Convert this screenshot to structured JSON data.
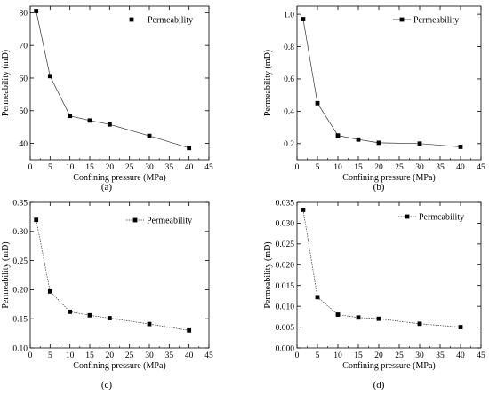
{
  "chart_data": [
    {
      "type": "line",
      "caption": "(a)",
      "xlabel": "Confining pressure (MPa)",
      "ylabel": "Permeability (mD)",
      "xlim": [
        0,
        45
      ],
      "ylim": [
        35,
        82
      ],
      "xticks": [
        "0",
        "5",
        "10",
        "15",
        "20",
        "25",
        "30",
        "35",
        "40",
        "45"
      ],
      "yticks": [
        "40",
        "50",
        "60",
        "70",
        "80"
      ],
      "line_style": "none",
      "legend_position": "top-right",
      "series": [
        {
          "name": "Permeability",
          "x": [
            1.5,
            5,
            10,
            15,
            20,
            30,
            40
          ],
          "y": [
            80.5,
            60.6,
            48.4,
            47,
            45.8,
            42.3,
            38.6
          ]
        }
      ]
    },
    {
      "type": "line",
      "caption": "(b)",
      "xlabel": "Confining pressure (MPa)",
      "ylabel": "Permeability (mD)",
      "xlim": [
        0,
        45
      ],
      "ylim": [
        0.1,
        1.05
      ],
      "xticks": [
        "0",
        "5",
        "10",
        "15",
        "20",
        "25",
        "30",
        "35",
        "40",
        "45"
      ],
      "yticks": [
        "0.2",
        "0.4",
        "0.6",
        "0.8",
        "1.0"
      ],
      "line_style": "solid",
      "legend_position": "top-right",
      "series": [
        {
          "name": "Permeability",
          "x": [
            1.5,
            5,
            10,
            15,
            20,
            30,
            40
          ],
          "y": [
            0.97,
            0.45,
            0.25,
            0.225,
            0.205,
            0.2,
            0.18
          ]
        }
      ]
    },
    {
      "type": "line",
      "caption": "(c)",
      "xlabel": "Confining pressure (MPa)",
      "ylabel": "Permeability (mD)",
      "xlim": [
        0,
        45
      ],
      "ylim": [
        0.1,
        0.35
      ],
      "xticks": [
        "0",
        "5",
        "10",
        "15",
        "20",
        "25",
        "30",
        "35",
        "40",
        "45"
      ],
      "yticks": [
        "0.10",
        "0.15",
        "0.20",
        "0.25",
        "0.30",
        "0.35"
      ],
      "line_style": "dotted",
      "legend_position": "top-right",
      "series": [
        {
          "name": "Permeability",
          "x": [
            1.5,
            5,
            10,
            15,
            20,
            30,
            40
          ],
          "y": [
            0.32,
            0.197,
            0.162,
            0.156,
            0.151,
            0.141,
            0.13
          ]
        }
      ]
    },
    {
      "type": "line",
      "caption": "(d)",
      "xlabel": "Confining pressure (MPa)",
      "ylabel": "Permeability (mD)",
      "xlim": [
        0,
        45
      ],
      "ylim": [
        0,
        0.035
      ],
      "xticks": [
        "0",
        "5",
        "10",
        "15",
        "20",
        "25",
        "30",
        "35",
        "40",
        "45"
      ],
      "yticks": [
        "0.000",
        "0.005",
        "0.010",
        "0.015",
        "0.020",
        "0.025",
        "0.030",
        "0.035"
      ],
      "line_style": "dotted",
      "legend_position": "top-right",
      "series": [
        {
          "name": "Permcability",
          "x": [
            1.5,
            5,
            10,
            15,
            20,
            30,
            40
          ],
          "y": [
            0.0332,
            0.0122,
            0.008,
            0.0073,
            0.007,
            0.0058,
            0.005
          ]
        }
      ]
    }
  ]
}
